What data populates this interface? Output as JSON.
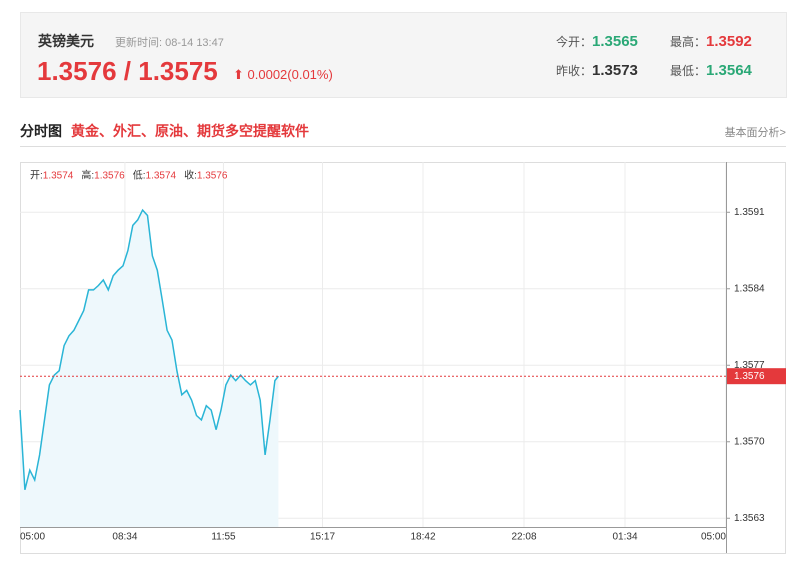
{
  "header": {
    "name": "英镑美元",
    "update_label": "更新时间:",
    "update_time": "08-14 13:47",
    "bid": "1.3576",
    "separator": "/",
    "ask": "1.3575",
    "change": "0.0002(0.01%)",
    "stats": [
      {
        "label": "今开：",
        "value": "1.3565",
        "tone": "up"
      },
      {
        "label": "最高：",
        "value": "1.3592",
        "tone": "down"
      },
      {
        "label": "昨收：",
        "value": "1.3573",
        "tone": "flat"
      },
      {
        "label": "最低：",
        "value": "1.3564",
        "tone": "up"
      }
    ]
  },
  "section": {
    "title": "分时图",
    "promo": "黄金、外汇、原油、期货多空提醒软件",
    "link": "基本面分析>"
  },
  "chart_data": {
    "type": "line",
    "ohlc": [
      {
        "label": "开:",
        "value": "1.3574"
      },
      {
        "label": "高:",
        "value": "1.3576"
      },
      {
        "label": "低:",
        "value": "1.3574"
      },
      {
        "label": "收:",
        "value": "1.3576"
      }
    ],
    "x": [
      "05:00",
      "05:10",
      "05:20",
      "05:30",
      "05:40",
      "05:50",
      "06:00",
      "06:10",
      "06:20",
      "06:30",
      "06:40",
      "06:50",
      "07:00",
      "07:10",
      "07:20",
      "07:30",
      "07:40",
      "07:50",
      "08:00",
      "08:10",
      "08:20",
      "08:30",
      "08:40",
      "08:50",
      "09:00",
      "09:10",
      "09:20",
      "09:30",
      "09:40",
      "09:50",
      "10:00",
      "10:10",
      "10:20",
      "10:30",
      "10:40",
      "10:50",
      "11:00",
      "11:10",
      "11:20",
      "11:30",
      "11:40",
      "11:50",
      "12:00",
      "12:10",
      "12:20",
      "12:30",
      "12:40",
      "12:50",
      "13:00",
      "13:10",
      "13:20",
      "13:30",
      "13:40",
      "13:47"
    ],
    "series": [
      {
        "name": "英镑美元",
        "color": "#2ab5d6",
        "values": [
          1.35729,
          1.35656,
          1.35674,
          1.35665,
          1.35688,
          1.3572,
          1.35752,
          1.35761,
          1.35765,
          1.35788,
          1.35797,
          1.35802,
          1.35811,
          1.3582,
          1.35839,
          1.35839,
          1.35843,
          1.35848,
          1.35839,
          1.35852,
          1.35857,
          1.35861,
          1.35875,
          1.35898,
          1.35903,
          1.35912,
          1.35907,
          1.3587,
          1.35857,
          1.3583,
          1.35802,
          1.35793,
          1.35765,
          1.35743,
          1.35747,
          1.35738,
          1.35724,
          1.3572,
          1.35733,
          1.35729,
          1.35711,
          1.35729,
          1.35752,
          1.35761,
          1.35756,
          1.35761,
          1.35756,
          1.35752,
          1.35756,
          1.35738,
          1.35688,
          1.3572,
          1.35756,
          1.3576
        ]
      }
    ],
    "xticks": [
      "05:00",
      "08:34",
      "11:55",
      "15:17",
      "18:42",
      "22:08",
      "01:34",
      "05:00"
    ],
    "ylim": [
      1.35622,
      1.35956
    ],
    "yticks": [
      {
        "value": 1.3563,
        "label": "1.3563"
      },
      {
        "value": 1.357,
        "label": "1.3570"
      },
      1.3577,
      1.3584,
      1.3591
    ],
    "current": {
      "value": 1.3576,
      "label": "1.3576",
      "color": "#e4393c"
    },
    "fill": "#eef8fc",
    "grid": true
  }
}
